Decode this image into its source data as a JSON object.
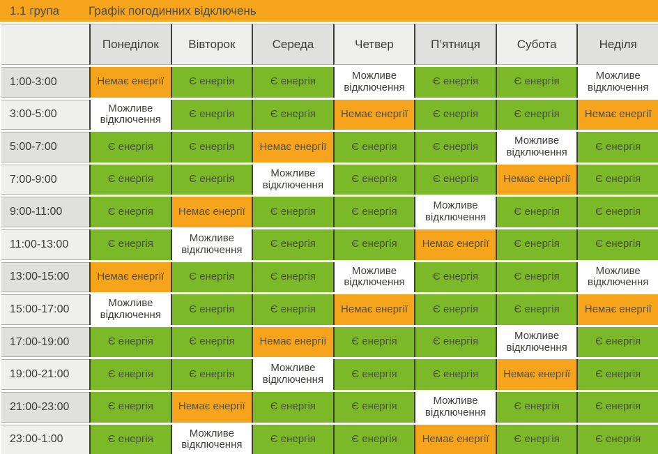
{
  "topbar": {
    "group": "1.1 група",
    "title": "Графік погодинних відключень",
    "bg_color": "#F5A41C"
  },
  "statuses": {
    "power": {
      "label": "Є енергія",
      "color": "#7CB929"
    },
    "no_power": {
      "label": "Немає енергії",
      "color": "#F5A41C"
    },
    "possible_outage": {
      "label": "Можливе відключення",
      "color": "#FFFFFF"
    }
  },
  "chart_data": {
    "type": "table",
    "title": "Графік погодинних відключень",
    "group": "1.1 група",
    "columns": [
      "Понеділок",
      "Вівторок",
      "Середа",
      "Четвер",
      "П’ятниця",
      "Субота",
      "Неділя"
    ],
    "rows": [
      {
        "time": "1:00-3:00",
        "values": [
          "no_power",
          "power",
          "power",
          "possible_outage",
          "power",
          "power",
          "possible_outage"
        ]
      },
      {
        "time": "3:00-5:00",
        "values": [
          "possible_outage",
          "power",
          "power",
          "no_power",
          "power",
          "power",
          "no_power"
        ]
      },
      {
        "time": "5:00-7:00",
        "values": [
          "power",
          "power",
          "no_power",
          "power",
          "power",
          "possible_outage",
          "power"
        ]
      },
      {
        "time": "7:00-9:00",
        "values": [
          "power",
          "power",
          "possible_outage",
          "power",
          "power",
          "no_power",
          "power"
        ]
      },
      {
        "time": "9:00-11:00",
        "values": [
          "power",
          "no_power",
          "power",
          "power",
          "possible_outage",
          "power",
          "power"
        ]
      },
      {
        "time": "11:00-13:00",
        "values": [
          "power",
          "possible_outage",
          "power",
          "power",
          "no_power",
          "power",
          "power"
        ]
      },
      {
        "time": "13:00-15:00",
        "values": [
          "no_power",
          "power",
          "power",
          "possible_outage",
          "power",
          "power",
          "possible_outage"
        ]
      },
      {
        "time": "15:00-17:00",
        "values": [
          "possible_outage",
          "power",
          "power",
          "no_power",
          "power",
          "power",
          "no_power"
        ]
      },
      {
        "time": "17:00-19:00",
        "values": [
          "power",
          "power",
          "no_power",
          "power",
          "power",
          "possible_outage",
          "power"
        ]
      },
      {
        "time": "19:00-21:00",
        "values": [
          "power",
          "power",
          "possible_outage",
          "power",
          "power",
          "no_power",
          "power"
        ]
      },
      {
        "time": "21:00-23:00",
        "values": [
          "power",
          "no_power",
          "power",
          "power",
          "possible_outage",
          "power",
          "power"
        ]
      },
      {
        "time": "23:00-1:00",
        "values": [
          "power",
          "possible_outage",
          "power",
          "power",
          "no_power",
          "power",
          "power"
        ]
      }
    ],
    "legend_note": "green = power on, orange = power off, white = possible outage"
  }
}
